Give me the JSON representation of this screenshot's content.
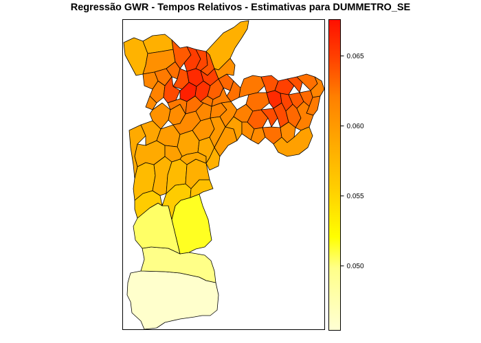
{
  "title": "Regressão GWR - Tempos Relativos - Estimativas para DUMMETRO_SE",
  "legend": {
    "ticks": [
      {
        "value": 0.05,
        "label": "0.050"
      },
      {
        "value": 0.055,
        "label": "0.055"
      },
      {
        "value": 0.06,
        "label": "0.060"
      },
      {
        "value": 0.065,
        "label": "0.065"
      }
    ],
    "min": 0.0454,
    "max": 0.0676,
    "colors": {
      "low": "#ffffd4",
      "yellow": "#ffff00",
      "orange": "#ff9900",
      "high": "#ff0000",
      "border": "#000000"
    }
  }
}
